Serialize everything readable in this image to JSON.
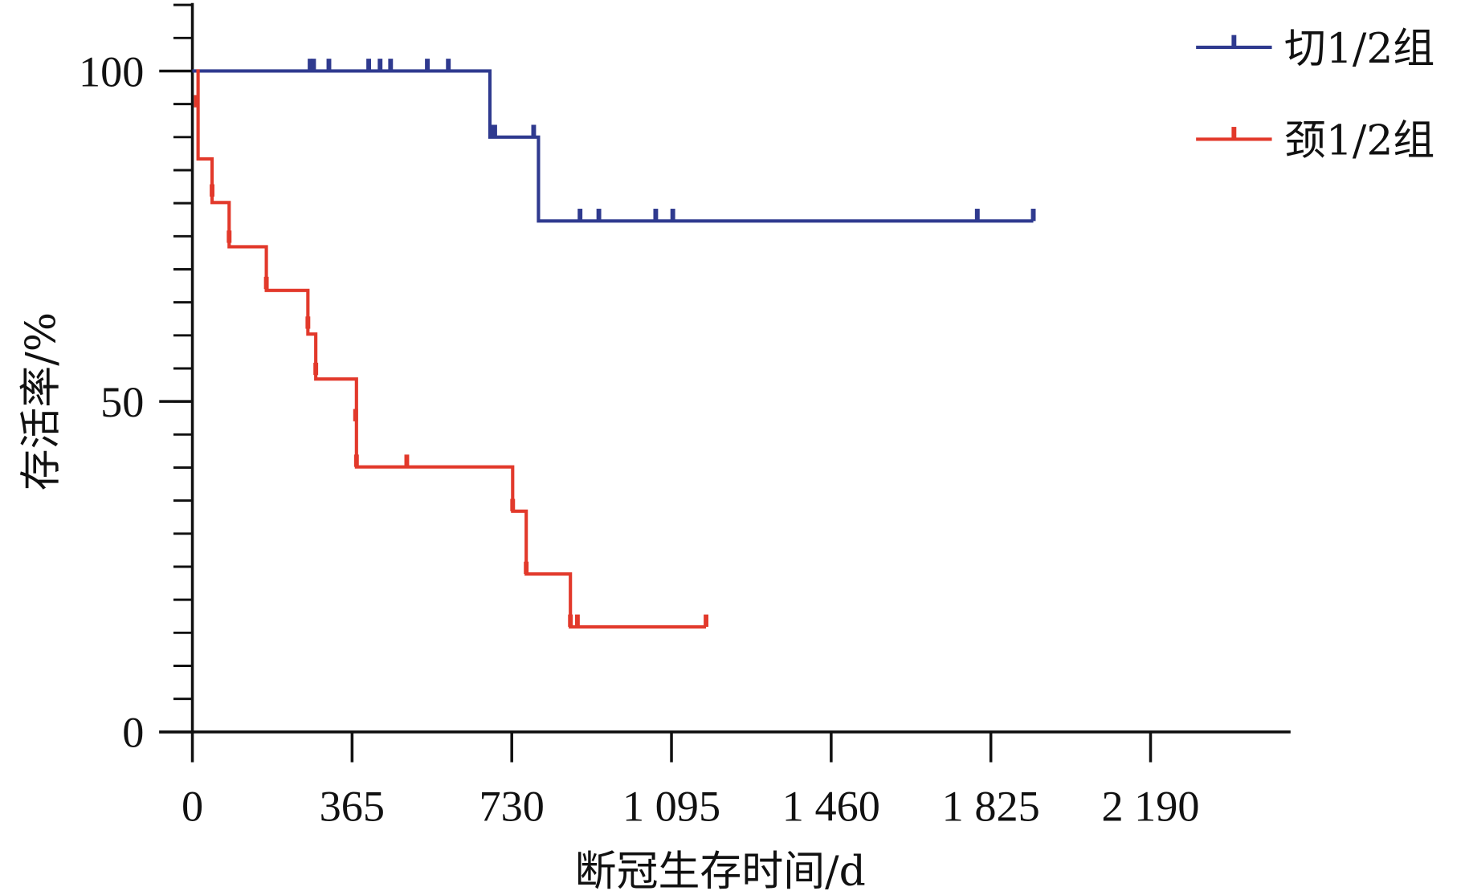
{
  "chart_data": {
    "type": "line",
    "subtype": "kaplan-meier",
    "title": "",
    "xlabel": "断冠生存时间/d",
    "ylabel": "存活率/%",
    "xlim": [
      0,
      2510
    ],
    "ylim": [
      0,
      110
    ],
    "x_ticks": [
      0,
      365,
      730,
      1095,
      1460,
      1825,
      2190
    ],
    "x_tick_labels": [
      "0",
      "365",
      "730",
      "1 095",
      "1 460",
      "1 825",
      "2 190"
    ],
    "y_ticks": [
      0,
      50,
      100
    ],
    "y_tick_labels": [
      "0",
      "50",
      "100"
    ],
    "y_minor_step": 5,
    "grid": false,
    "legend_position": "top-right",
    "series": [
      {
        "name": "切1/2组",
        "color": "#2f3a8f",
        "steps": [
          [
            0,
            100
          ],
          [
            680,
            90
          ],
          [
            791,
            77.3
          ]
        ],
        "end_x": 1922,
        "censored": [
          [
            269,
            100
          ],
          [
            277,
            100
          ],
          [
            312,
            100
          ],
          [
            403,
            100
          ],
          [
            429,
            100
          ],
          [
            453,
            100
          ],
          [
            537,
            100
          ],
          [
            585,
            100
          ],
          [
            682,
            90
          ],
          [
            691,
            90
          ],
          [
            780,
            90
          ],
          [
            886,
            77.3
          ],
          [
            929,
            77.3
          ],
          [
            1059,
            77.3
          ],
          [
            1098,
            77.3
          ],
          [
            1794,
            77.3
          ],
          [
            1922,
            77.3
          ]
        ]
      },
      {
        "name": "颈1/2组",
        "color": "#e2392b",
        "steps": [
          [
            9,
            100
          ],
          [
            13,
            86.7
          ],
          [
            45,
            80.1
          ],
          [
            84,
            73.4
          ],
          [
            169,
            66.8
          ],
          [
            264,
            60.2
          ],
          [
            282,
            53.4
          ],
          [
            375,
            40.1
          ],
          [
            732,
            33.4
          ],
          [
            763,
            23.9
          ],
          [
            864,
            15.9
          ]
        ],
        "end_x": 1174,
        "censored": [
          [
            9,
            94.5
          ],
          [
            45,
            81
          ],
          [
            84,
            74
          ],
          [
            169,
            67
          ],
          [
            264,
            61
          ],
          [
            282,
            54
          ],
          [
            373,
            47
          ],
          [
            375,
            40.1
          ],
          [
            490,
            40.1
          ],
          [
            732,
            33.4
          ],
          [
            763,
            23.9
          ],
          [
            864,
            15.9
          ],
          [
            880,
            15.9
          ],
          [
            1174,
            15.9
          ]
        ]
      }
    ]
  }
}
